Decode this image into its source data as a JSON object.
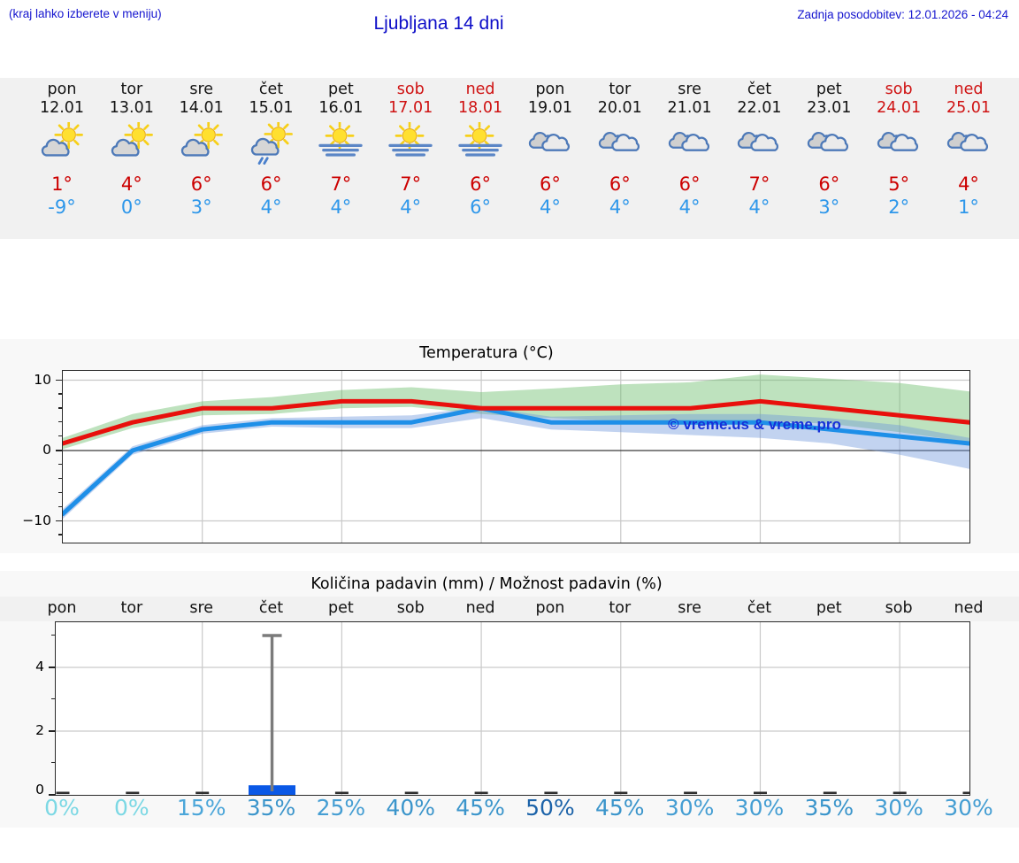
{
  "header": {
    "hint": "(kraj lahko izberete v meniju)",
    "title": "Ljubljana 14 dni",
    "updated": "Zadnja posodobitev: 12.01.2026 - 04:24"
  },
  "days": [
    {
      "name": "pon",
      "date": "12.01",
      "weekend": false,
      "icon": "sun-cloud",
      "high": "1°",
      "low": "-9°"
    },
    {
      "name": "tor",
      "date": "13.01",
      "weekend": false,
      "icon": "sun-cloud",
      "high": "4°",
      "low": "0°"
    },
    {
      "name": "sre",
      "date": "14.01",
      "weekend": false,
      "icon": "sun-cloud",
      "high": "6°",
      "low": "3°"
    },
    {
      "name": "čet",
      "date": "15.01",
      "weekend": false,
      "icon": "sun-cloud-rain",
      "high": "6°",
      "low": "4°"
    },
    {
      "name": "pet",
      "date": "16.01",
      "weekend": false,
      "icon": "sun-fog",
      "high": "7°",
      "low": "4°"
    },
    {
      "name": "sob",
      "date": "17.01",
      "weekend": true,
      "icon": "sun-fog",
      "high": "7°",
      "low": "4°"
    },
    {
      "name": "ned",
      "date": "18.01",
      "weekend": true,
      "icon": "sun-fog",
      "high": "6°",
      "low": "6°"
    },
    {
      "name": "pon",
      "date": "19.01",
      "weekend": false,
      "icon": "cloudy",
      "high": "6°",
      "low": "4°"
    },
    {
      "name": "tor",
      "date": "20.01",
      "weekend": false,
      "icon": "cloudy",
      "high": "6°",
      "low": "4°"
    },
    {
      "name": "sre",
      "date": "21.01",
      "weekend": false,
      "icon": "cloudy",
      "high": "6°",
      "low": "4°"
    },
    {
      "name": "čet",
      "date": "22.01",
      "weekend": false,
      "icon": "cloudy",
      "high": "7°",
      "low": "4°"
    },
    {
      "name": "pet",
      "date": "23.01",
      "weekend": false,
      "icon": "cloudy",
      "high": "6°",
      "low": "3°"
    },
    {
      "name": "sob",
      "date": "24.01",
      "weekend": true,
      "icon": "cloudy",
      "high": "5°",
      "low": "2°"
    },
    {
      "name": "ned",
      "date": "25.01",
      "weekend": true,
      "icon": "cloudy",
      "high": "4°",
      "low": "1°"
    }
  ],
  "chart_data": [
    {
      "type": "line",
      "title": "Temperatura (°C)",
      "categories": [
        "12.01",
        "13.01",
        "14.01",
        "15.01",
        "16.01",
        "17.01",
        "18.01",
        "19.01",
        "20.01",
        "21.01",
        "22.01",
        "23.01",
        "24.01",
        "25.01"
      ],
      "series": [
        {
          "name": "max-temperature",
          "color": "#e8100c",
          "values": [
            1,
            4,
            6,
            6,
            7,
            7,
            6,
            6,
            6,
            6,
            7,
            6,
            5,
            4
          ]
        },
        {
          "name": "min-temperature",
          "color": "#1e8fe8",
          "values": [
            -9,
            0,
            3,
            4,
            4,
            4,
            6,
            4,
            4,
            4,
            4,
            3,
            2,
            1
          ]
        }
      ],
      "bands": [
        {
          "name": "max-uncertainty",
          "color": "rgba(110,190,110,0.45)",
          "upper": [
            1.8,
            5.2,
            7,
            7.6,
            8.6,
            9,
            8.3,
            8.8,
            9.4,
            9.7,
            10.8,
            10.2,
            9.6,
            8.4
          ],
          "lower": [
            0.2,
            3.2,
            5,
            5.2,
            6,
            6.2,
            5.2,
            4.6,
            4.2,
            4,
            4.2,
            3.8,
            2.6,
            1.2
          ]
        },
        {
          "name": "min-uncertainty",
          "color": "rgba(110,150,220,0.42)",
          "upper": [
            -8.3,
            0.6,
            3.6,
            4.6,
            4.8,
            5,
            6.2,
            4.8,
            5,
            5.2,
            5.2,
            4.6,
            3.6,
            1.8
          ],
          "lower": [
            -9.7,
            -0.6,
            2.4,
            3.4,
            3.2,
            3.2,
            4.6,
            3,
            2.6,
            2.2,
            1.8,
            1,
            -0.6,
            -2.6
          ]
        }
      ],
      "yticks": [
        "10",
        "0",
        "−10"
      ],
      "ytick_values": [
        10,
        0,
        -10
      ],
      "ylim": [
        -13.1,
        11.3
      ],
      "grid": true,
      "watermark": "© vreme.us & vreme.pro",
      "watermark_color": "#1630d8"
    },
    {
      "type": "bar",
      "title": "Količina padavin (mm) / Možnost padavin (%)",
      "categories": [
        "pon",
        "tor",
        "sre",
        "čet",
        "pet",
        "sob",
        "ned",
        "pon",
        "tor",
        "sre",
        "čet",
        "pet",
        "sob",
        "ned"
      ],
      "values": [
        0,
        0,
        0,
        0.3,
        0,
        0,
        0,
        0,
        0,
        0,
        0,
        0,
        0,
        0
      ],
      "bar_color": "#0a58e6",
      "whisker": {
        "day_index": 3,
        "low": 0.3,
        "high": 5.0,
        "color": "#7b7b7b"
      },
      "probabilities": [
        {
          "label": "0%",
          "color": "#7cd8e4"
        },
        {
          "label": "0%",
          "color": "#7cd8e4"
        },
        {
          "label": "15%",
          "color": "#4ba6d9"
        },
        {
          "label": "35%",
          "color": "#3b95cb"
        },
        {
          "label": "25%",
          "color": "#459ed3"
        },
        {
          "label": "40%",
          "color": "#3b95cb"
        },
        {
          "label": "45%",
          "color": "#3b95cb"
        },
        {
          "label": "50%",
          "color": "#1c63a9"
        },
        {
          "label": "45%",
          "color": "#3b95cb"
        },
        {
          "label": "30%",
          "color": "#459ed3"
        },
        {
          "label": "30%",
          "color": "#459ed3"
        },
        {
          "label": "35%",
          "color": "#3b95cb"
        },
        {
          "label": "30%",
          "color": "#459ed3"
        },
        {
          "label": "30%",
          "color": "#459ed3"
        }
      ],
      "yticks": [
        "0",
        "2",
        "4"
      ],
      "ytick_values": [
        0,
        2,
        4
      ],
      "ylim": [
        0,
        5.4
      ],
      "grid": true
    }
  ],
  "colors": {
    "strip_bg": "#f1f1f1",
    "fig_bg": "#f8f8f8",
    "high_temp": "#cc0000",
    "low_temp": "#2e97ea",
    "weekend": "#cf1212",
    "header_blue": "#1515cf",
    "gridline": "#c9c9c9",
    "zero_line": "#3a3a3a"
  }
}
